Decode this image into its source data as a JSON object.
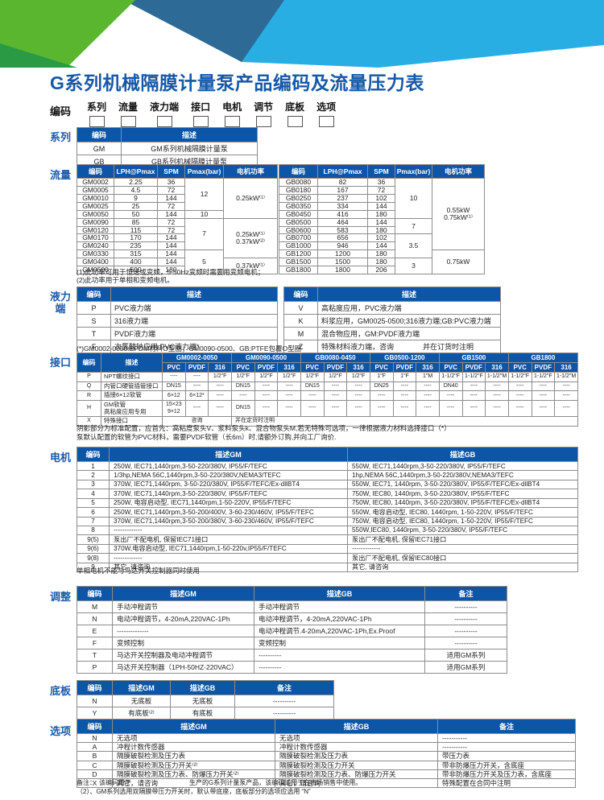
{
  "page_title": "G系列机械隔膜计量泵产品编码及流量压力表",
  "colors": {
    "header_blue": "#0d55a6",
    "title_blue": "#1558a8",
    "banner_green": "#5ab62f",
    "banner_dark_green": "#2a9b44",
    "banner_teal": "#2d6a96",
    "banner_light_blue": "#29aee3"
  },
  "coding": {
    "label": "编码",
    "fields": [
      "系列",
      "流量",
      "液力端",
      "接口",
      "电机",
      "调节",
      "底板",
      "选项"
    ]
  },
  "sections": {
    "series": {
      "label": "系列",
      "table": {
        "head": [
          [
            "编码",
            "描述"
          ]
        ],
        "rows": [
          [
            "GM",
            "GM系列机械隔膜计量泵"
          ],
          [
            "GB",
            "GB系列机械隔膜计量泵"
          ]
        ]
      }
    },
    "flow": {
      "label": "流量",
      "gm_table": {
        "head": [
          [
            "编码",
            "LPH@Pmax",
            "SPM",
            "Pmax(bar)",
            "电机功率"
          ]
        ],
        "rows": [
          [
            "GM0002",
            "2.25",
            "36",
            {
              "t": "12",
              "rs": 4
            },
            {
              "t": "0.25kW⁽¹⁾",
              "rs": 5
            }
          ],
          [
            "GM0005",
            "4.5",
            "72"
          ],
          [
            "GM0010",
            "9",
            "144"
          ],
          [
            "GM0025",
            "25",
            "72"
          ],
          [
            "GM0050",
            "50",
            "144",
            "10"
          ],
          [
            "GM0090",
            "85",
            "72",
            {
              "t": "7",
              "rs": 4
            },
            {
              "t": "0.25kW⁽¹⁾\n0.37kW⁽²⁾",
              "rs": 5
            }
          ],
          [
            "GM0120",
            "115",
            "72"
          ],
          [
            "GM0170",
            "170",
            "144"
          ],
          [
            "GM0240",
            "235",
            "144"
          ],
          [
            "GM0330",
            "315",
            "144",
            {
              "t": "5",
              "rs": 3
            }
          ],
          [
            "GM0400",
            "400",
            "144",
            {
              "t": "0.37kW⁽¹⁾",
              "rs": 2
            }
          ],
          [
            "GM0500",
            "500",
            "180"
          ]
        ]
      },
      "gb_table": {
        "head": [
          [
            "编码",
            "LPH@Pmax",
            "SPM",
            "Pmax(bar)",
            "电机功率"
          ]
        ],
        "rows": [
          [
            "GB0080",
            "82",
            "36",
            {
              "t": "10",
              "rs": 5
            },
            {
              "t": "0.55kW\n0.75kW⁽¹⁾",
              "rs": 9
            }
          ],
          [
            "GB0180",
            "167",
            "72"
          ],
          [
            "GB0250",
            "237",
            "102"
          ],
          [
            "GB0350",
            "334",
            "144"
          ],
          [
            "GB0450",
            "416",
            "180"
          ],
          [
            "GB0500",
            "464",
            "144",
            {
              "t": "7",
              "rs": 2
            }
          ],
          [
            "GB0600",
            "583",
            "180"
          ],
          [
            "GB0700",
            "656",
            "102",
            {
              "t": "3.5",
              "rs": 3
            }
          ],
          [
            "GB1000",
            "946",
            "144"
          ],
          [
            "GB1200",
            "1200",
            "180",
            {
              "t": "0.75kW",
              "rs": 3
            }
          ],
          [
            "GB1500",
            "1500",
            "180",
            {
              "t": "3",
              "rs": 2
            }
          ],
          [
            "GB1800",
            "1800",
            "206"
          ]
        ]
      },
      "notes": [
        "(1)此功率可用于恒速或变频，5-50Hz变频时需要用变频电机；",
        "(2)此功率用于单相和变频电机。"
      ]
    },
    "liquid": {
      "label": "液力端",
      "left_table": {
        "head": [
          [
            "编码",
            "描述"
          ]
        ],
        "rows": [
          [
            "P",
            "PVC液力端"
          ],
          [
            "S",
            "316液力端"
          ],
          [
            "T",
            "PVDF液力端"
          ],
          [
            "F",
            "次氯酸钠应用:PVC液力端*"
          ]
        ]
      },
      "right_table": {
        "head": [
          [
            "编码",
            "描述"
          ]
        ],
        "rows": [
          [
            "V",
            "高粘度应用，PVC液力端"
          ],
          [
            "K",
            "料浆应用，GM0025-0500;316液力端;GB:PVC液力端"
          ],
          [
            "M",
            "混合物应用，GM:PVDF液力端"
          ],
          [
            "Z",
            "特殊材料液力端，咨询　　　　并在订货时注明"
          ]
        ]
      },
      "note": "(*)GM0002-0050:EPDM材料O型圈；GM0090-0500、GB:PTFE包覆O型圈"
    },
    "interface": {
      "label": "接口",
      "table": {
        "head": [
          [
            {
              "t": "编码",
              "rs": 2
            },
            {
              "t": "描述",
              "rs": 2
            },
            {
              "t": "GM0002-0050",
              "cs": 3
            },
            {
              "t": "GM0090-0500",
              "cs": 3
            },
            {
              "t": "GB0080-0450",
              "cs": 3
            },
            {
              "t": "GB0500-1200",
              "cs": 3
            },
            {
              "t": "GB1500",
              "cs": 3
            },
            {
              "t": "GB1800",
              "cs": 3
            }
          ],
          [
            "PVC",
            "PVDF",
            "316",
            "PVC",
            "PVDF",
            "316",
            "PVC",
            "PVDF",
            "316",
            "PVC",
            "PVDF",
            "316",
            "PVC",
            "PVDF",
            "316",
            "PVC",
            "PVDF",
            "316"
          ]
        ],
        "rows": [
          [
            "P",
            "NPT螺纹接口",
            "----",
            "----",
            "1/2\"F",
            "1/2\"F",
            "1/2\"F",
            "1/2\"F",
            "1/2\"F",
            "1/2\"F",
            "1/2\"F",
            "1\"F",
            "1\"F",
            "1\"M",
            "1-1/2\"F",
            "1-1/2\"F",
            "1-1/2\"M",
            "1-1/2\"F",
            "1-1/2\"F",
            "1-1/2\"M"
          ],
          [
            "Q",
            "内管口硬管插管接口",
            "DN15",
            "----",
            "----",
            "DN15",
            "----",
            "----",
            "DN15",
            "----",
            "----",
            "DN25",
            "----",
            "----",
            "DN40",
            "----",
            "----",
            "----",
            "----",
            "----"
          ],
          [
            "R",
            "插接6×12软管",
            "6×12",
            "6×12*",
            "----",
            "----",
            "----",
            "----",
            "----",
            "----",
            "----",
            "----",
            "----",
            "----",
            "----",
            "----",
            "----",
            "----",
            "----",
            "----"
          ],
          [
            "H",
            "GM软管\n高粘度应用专用",
            "15×23\n9×12",
            "----",
            "----",
            "DN15",
            "----",
            "----",
            "----",
            "----",
            "----",
            "----",
            "----",
            "----",
            "----",
            "----",
            "----",
            "----",
            "----",
            "----"
          ],
          [
            "X",
            "特殊接口",
            {
              "t": "咨询",
              "cs": 3
            },
            {
              "t": "并在定货时注明",
              "cs": 15,
              "cls": "L"
            }
          ]
        ]
      },
      "notes": [
        "阴影部分为标准配置，应首先：高粘度泵头V、浆料泵头k、混合物泵头M,若无特殊可选项，一律根据液力材料选择接口（*）",
        "泵默认配置的软管为PVC材料，需要PVDF软管（长6m）时,请额外订购,并向工厂询价."
      ]
    },
    "motor": {
      "label": "电机",
      "table": {
        "head": [
          [
            "编码",
            "描述GM",
            "描述GB"
          ]
        ],
        "rows": [
          [
            "1",
            "250W, IEC71,1440rpm,3-50-220/380V,  IP55/F/TEFC",
            "550W, IEC71,1440rpm,3-50-220/380V,  IP55/F/TEFC"
          ],
          [
            "2",
            "1/3hp,NEMA  56C,1440rpm,3-50-220/380V,NEMA3/TEFC",
            "1hp,NEMA  56C,1440rpm,3-50-220/380V,NEMA3/TEFC"
          ],
          [
            "3",
            "370W, IEC71,1440rpm, 3-50-220/380V, IP55/F/TEFC/Ex-dllBT4",
            "550W, IEC71, 1440rpm, 3-50-220/380V, IP55/F/TEFC/Ex-dllBT4"
          ],
          [
            "4",
            "370W, IEC71,1440rpm,3-50-220/380V,  IP55/F/TEFC",
            "750W, IEC80, 1440rpm, 3-50-220/380V, IP55/F/TEFC"
          ],
          [
            "5",
            "250W, 电容启动型, IEC71,1440rpm,1-50-220V,  IP55/F/TEFC",
            "750W, IEC80, 1440rpm, 3-50-220/380V, IP55/F/TEFC/Ex-dllBT4"
          ],
          [
            "6",
            "250W, IEC71,1440rpm,3-50-200/400V, 3-60-230/460V, IP55/F/TEFC",
            "550W, 电容启动型, IEC80, 1440rpm, 1-50-220V, IP55/F/TEFC"
          ],
          [
            "7",
            "370W, IEC71,1440rpm,3-50-200/380V, 3-60-230/460V, IP55/F/TEFC",
            "750W, 电容启动型, IEC80, 1440rpm, 1-50-220V, IP55/F/TEFC"
          ],
          [
            "8",
            "-------------",
            "550W,IEC80, 1440rpm, 3-50-220/380V, IP55/F/TEFC"
          ],
          [
            "9(5)",
            "泵出厂不配电机, 保留IEC71接口",
            "泵出厂不配电机, 保留IEC71接口"
          ],
          [
            "9(6)",
            "370W,电容启动型, IEC71,1440rpm,1-50-220v,IP55/F/TEFC",
            "-------------"
          ],
          [
            "9(8)",
            "-------------",
            "泵出厂不配电机, 保留IEC80接口"
          ],
          [
            "9",
            "其它, 请咨询",
            "其它, 请咨询"
          ]
        ]
      },
      "note": "单相电机不能与马达开关控制器同时使用"
    },
    "adjust": {
      "label": "调整",
      "table": {
        "head": [
          [
            "编码",
            "描述GM",
            "描述GB",
            "备注"
          ]
        ],
        "rows": [
          [
            "M",
            "手动冲程调节",
            "手动冲程调节",
            "----------"
          ],
          [
            "N",
            "电动冲程调节，4-20mA,220VAC-1Ph",
            "电动冲程调节，4-20mA,220VAC-1Ph",
            "----------"
          ],
          [
            "E",
            "--------------",
            "电动冲程调节.4-20mA,220VAC-1Ph,Ex.Proof",
            "----------"
          ],
          [
            "F",
            "变频控制",
            "变频控制",
            "----------"
          ],
          [
            "T",
            "马达开关控制器及电动冲程调节",
            "----------",
            "适用GM系列"
          ],
          [
            "P",
            "马达开关控制器（1PH-50HZ-220VAC）",
            "----------",
            "适用GM系列"
          ]
        ]
      }
    },
    "base": {
      "label": "底板",
      "table": {
        "head": [
          [
            "编码",
            "描述GM",
            "描述GB",
            "备注"
          ]
        ],
        "rows": [
          [
            "N",
            "无底板",
            "无底板",
            "----------"
          ],
          [
            "Y",
            "有底板⁽²⁾",
            "有底板",
            "----------"
          ]
        ]
      }
    },
    "options": {
      "label": "选项",
      "table": {
        "head": [
          [
            "编码",
            "描述GM",
            "描述GB",
            "备注"
          ]
        ],
        "rows": [
          [
            "N",
            "无选项",
            "无选项",
            "-----------"
          ],
          [
            "A",
            "冲程计数传感器",
            "冲程计数传感器",
            "-----------"
          ],
          [
            "B",
            "隔膜破裂检测及压力表",
            "隔膜破裂检测及压力表",
            "带压力表"
          ],
          [
            "C",
            "隔膜破裂检测及压力开关⁽²⁾",
            "隔膜破裂检测及压力开关",
            "带非防爆压力开关，含底座"
          ],
          [
            "D",
            "隔膜破裂检测及压力表、防爆压力开关⁽²⁾",
            "隔膜破裂检测及压力表、防爆压力开关",
            "带非防爆压力开关及压力表，含底座"
          ],
          [
            "X",
            "其它，请咨询",
            "其它，请咨询",
            "特殊配置在合同中注明"
          ]
        ]
      }
    },
    "footer_notes": [
      "备注：　该编码用于　　　　　　　　　生产的G系列计量泵产品，该编码适用于在市场销售中使用。",
      "（2）、GM系列选用双隔膜带压力开关时，默认带底座，底板部分的选项应选用 “N”"
    ]
  }
}
